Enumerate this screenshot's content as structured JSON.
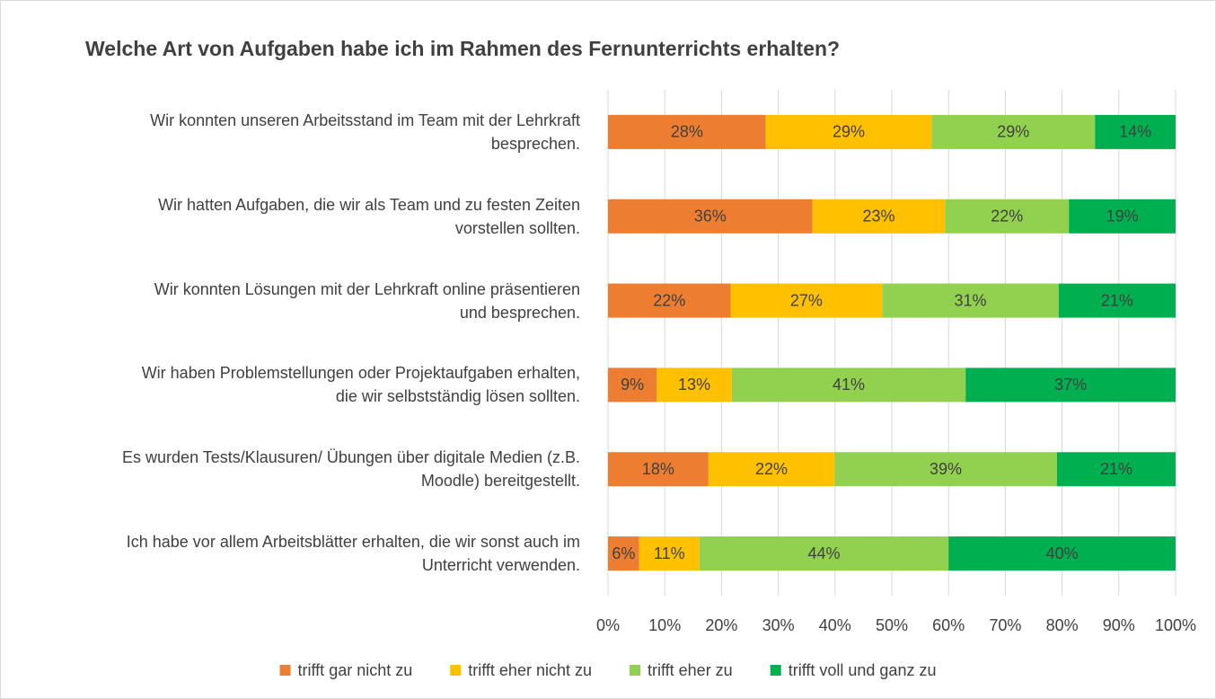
{
  "chart_data": {
    "type": "stacked-bar-horizontal",
    "title": "Welche Art von Aufgaben habe ich im Rahmen des Fernunterrichts erhalten?",
    "categories": [
      "Wir konnten unseren Arbeitsstand im Team mit der Lehrkraft\nbesprechen.",
      "Wir hatten Aufgaben, die wir als Team und zu festen Zeiten\nvorstellen sollten.",
      "Wir konnten Lösungen mit der Lehrkraft online präsentieren\nund besprechen.",
      "Wir haben Problemstellungen oder Projektaufgaben erhalten,\ndie wir selbstständig lösen sollten.",
      "Es wurden Tests/Klausuren/ Übungen über digitale Medien (z.B.\nMoodle) bereitgestellt.",
      "Ich habe vor allem Arbeitsblätter erhalten, die wir sonst auch im\nUnterricht verwenden."
    ],
    "series": [
      {
        "name": "trifft gar nicht zu",
        "color": "#ED7D31",
        "values": [
          27.8,
          36.0,
          21.6,
          8.6,
          17.7,
          5.5
        ],
        "value_labels": [
          "28%",
          "36%",
          "22%",
          "9%",
          "18%",
          "6%"
        ]
      },
      {
        "name": "trifft eher nicht zu",
        "color": "#FFC000",
        "values": [
          29.2,
          23.4,
          26.7,
          13.2,
          22.2,
          10.6
        ],
        "value_labels": [
          "29%",
          "23%",
          "27%",
          "13%",
          "22%",
          "11%"
        ]
      },
      {
        "name": "trifft eher zu",
        "color": "#92D050",
        "values": [
          28.8,
          21.8,
          31.1,
          41.2,
          39.2,
          43.9
        ],
        "value_labels": [
          "29%",
          "22%",
          "31%",
          "41%",
          "39%",
          "44%"
        ]
      },
      {
        "name": "trifft voll und ganz zu",
        "color": "#00B050",
        "values": [
          14.2,
          18.8,
          20.6,
          37.0,
          20.9,
          40.0
        ],
        "value_labels": [
          "14%",
          "19%",
          "21%",
          "37%",
          "21%",
          "40%"
        ]
      }
    ],
    "xlim": [
      0,
      100
    ],
    "xticks": [
      {
        "value": 0,
        "label": "0%"
      },
      {
        "value": 10,
        "label": "10%"
      },
      {
        "value": 20,
        "label": "20%"
      },
      {
        "value": 30,
        "label": "30%"
      },
      {
        "value": 40,
        "label": "40%"
      },
      {
        "value": 50,
        "label": "50%"
      },
      {
        "value": 60,
        "label": "60%"
      },
      {
        "value": 70,
        "label": "70%"
      },
      {
        "value": 80,
        "label": "80%"
      },
      {
        "value": 90,
        "label": "90%"
      },
      {
        "value": 100,
        "label": "100%"
      }
    ],
    "grid": true,
    "legend": "bottom"
  }
}
